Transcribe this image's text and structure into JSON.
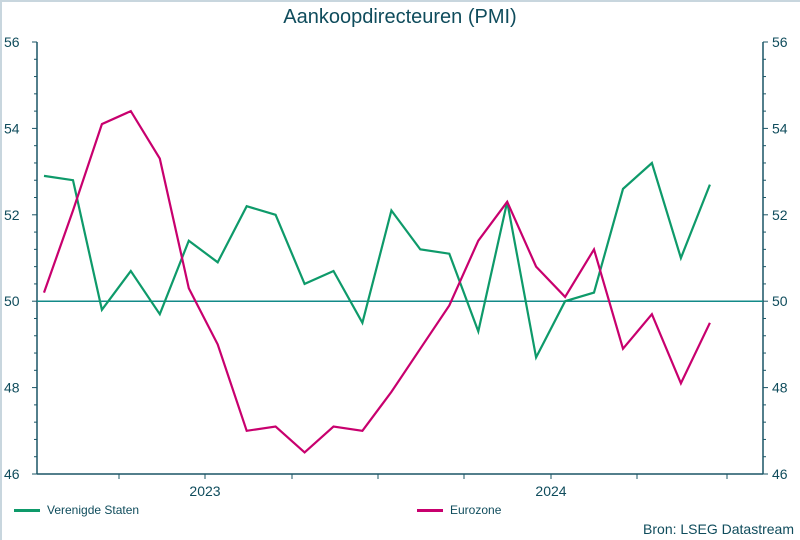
{
  "header": {
    "title": "Aankoopdirecteuren (PMI)"
  },
  "legend": [
    {
      "label": "Verenigde Staten",
      "color": "#0e9a6a"
    },
    {
      "label": "Eurozone",
      "color": "#c8006e"
    }
  ],
  "source": "Bron: LSEG Datastream",
  "colors": {
    "axis": "#1a5566",
    "reference_line": "#138a88",
    "text": "#0f4c5c"
  },
  "chart_data": {
    "type": "line",
    "title": "Aankoopdirecteuren (PMI)",
    "xlabel": "",
    "ylabel": "",
    "ylim": [
      46,
      56
    ],
    "yticks": [
      46,
      48,
      50,
      52,
      54,
      56
    ],
    "x_tick_labels": [
      "2023",
      "2024"
    ],
    "reference_line": 50,
    "grid": false,
    "legend_position": "bottom",
    "x": [
      "2022-07",
      "2022-08",
      "2022-09",
      "2022-10",
      "2022-11",
      "2022-12",
      "2023-01",
      "2023-02",
      "2023-03",
      "2023-04",
      "2023-05",
      "2023-06",
      "2023-07",
      "2023-08",
      "2023-09",
      "2023-10",
      "2023-11",
      "2023-12",
      "2024-01",
      "2024-02",
      "2024-03",
      "2024-04",
      "2024-05",
      "2024-06"
    ],
    "series": [
      {
        "name": "Verenigde Staten",
        "color": "#0e9a6a",
        "values": [
          52.9,
          52.8,
          49.8,
          50.7,
          49.7,
          51.4,
          50.9,
          52.2,
          52.0,
          50.4,
          50.7,
          49.5,
          52.1,
          51.2,
          51.1,
          49.3,
          52.3,
          48.7,
          50.0,
          50.2,
          52.6,
          53.2,
          51.0,
          52.7
        ]
      },
      {
        "name": "Eurozone",
        "color": "#c8006e",
        "values": [
          50.2,
          52.1,
          54.1,
          54.4,
          53.3,
          50.3,
          49.0,
          47.0,
          47.1,
          46.5,
          47.1,
          47.0,
          47.9,
          48.9,
          49.9,
          51.4,
          52.3,
          50.8,
          50.1,
          51.2,
          48.9,
          49.7,
          48.1,
          49.5
        ]
      }
    ],
    "source": "Bron: LSEG Datastream"
  }
}
